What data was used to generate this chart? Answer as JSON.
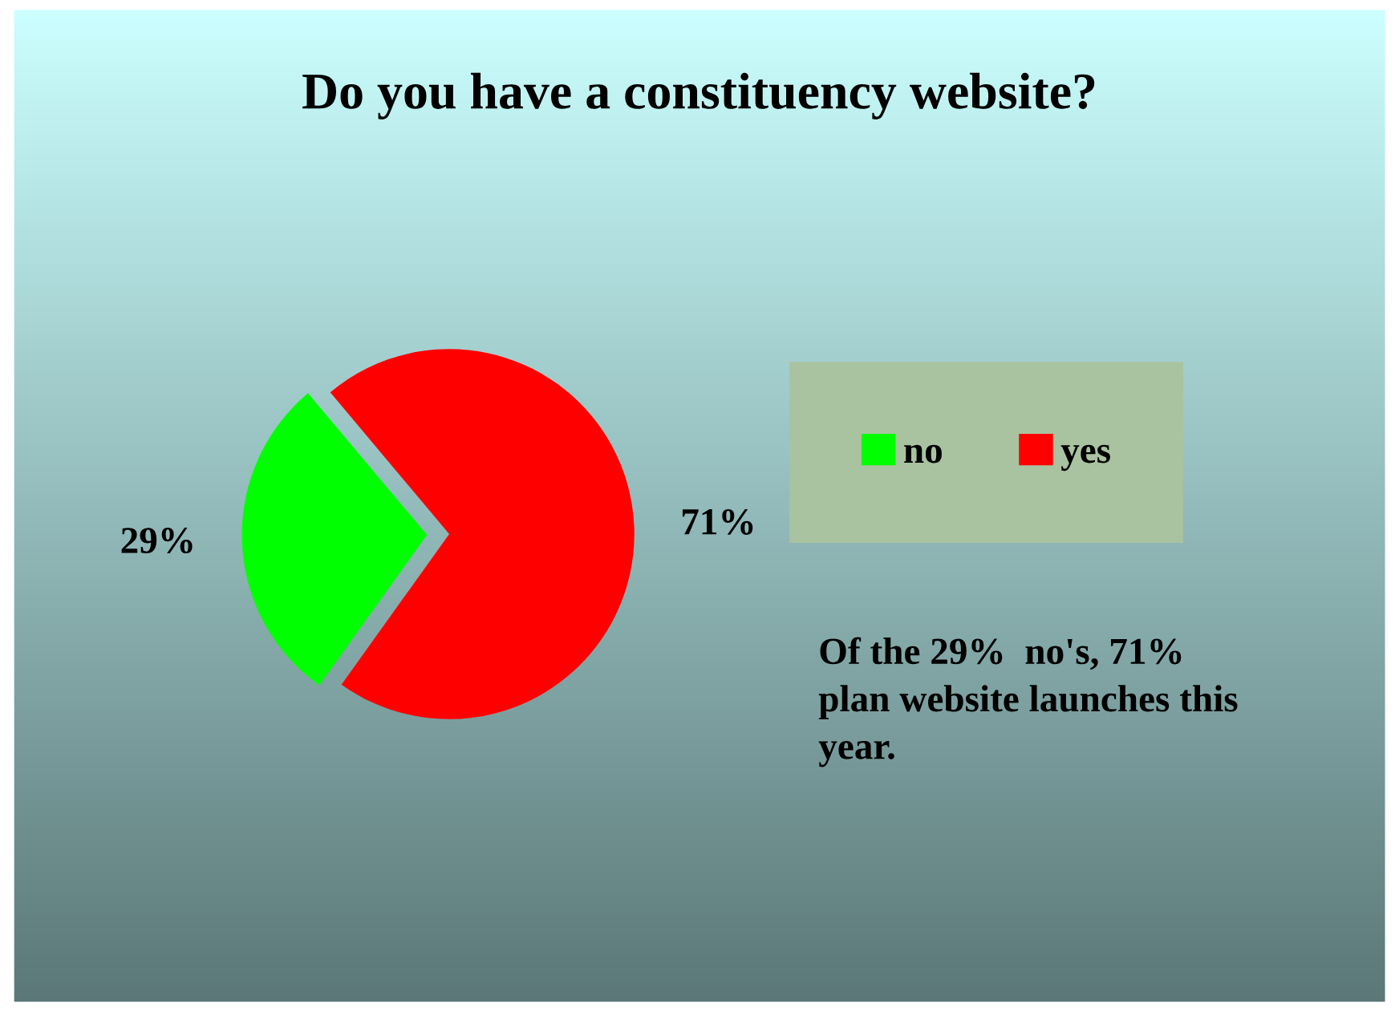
{
  "chart_data": {
    "type": "pie",
    "title": "Do you have a constituency website?",
    "categories": [
      "no",
      "yes"
    ],
    "values": [
      29,
      71
    ],
    "colors": [
      "#00ff00",
      "#ff0000"
    ],
    "value_labels": [
      "29%",
      "71%"
    ],
    "legend": "right",
    "annotations": [
      "Of the 29%  no's, 71%\nplan website launches this\nyear."
    ]
  }
}
